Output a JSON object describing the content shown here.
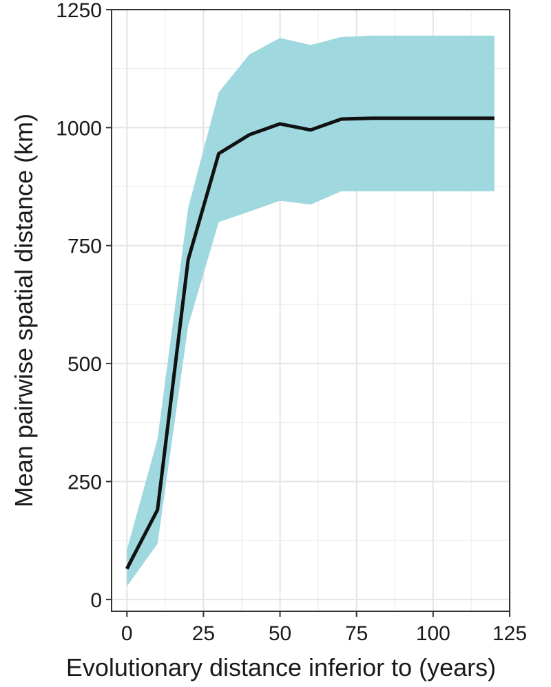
{
  "chart_data": {
    "type": "line",
    "xlabel": "Evolutionary distance inferior to (years)",
    "ylabel": "Mean pairwise spatial distance (km)",
    "xlim": [
      -5,
      125
    ],
    "ylim": [
      -25,
      1250
    ],
    "x_ticks": [
      0,
      25,
      50,
      75,
      100,
      125
    ],
    "y_ticks": [
      0,
      250,
      500,
      750,
      1000,
      1250
    ],
    "x_tick_labels": [
      "0",
      "25",
      "50",
      "75",
      "100",
      "125"
    ],
    "y_tick_labels": [
      "0",
      "250",
      "500",
      "750",
      "1000",
      "1250"
    ],
    "grid": true,
    "legend": "none",
    "series": [
      {
        "x": [
          0,
          10,
          20,
          30,
          40,
          50,
          60,
          70,
          80,
          90,
          100,
          110,
          120
        ],
        "mean": [
          65,
          190,
          720,
          945,
          985,
          1008,
          995,
          1018,
          1020,
          1020,
          1020,
          1020,
          1020
        ],
        "lower": [
          28,
          118,
          580,
          800,
          822,
          845,
          837,
          865,
          865,
          865,
          865,
          865,
          865
        ],
        "upper": [
          105,
          340,
          830,
          1075,
          1155,
          1190,
          1175,
          1192,
          1195,
          1195,
          1195,
          1195,
          1195
        ],
        "line_color": "#111111",
        "band_color": "#9fd8de"
      }
    ]
  }
}
